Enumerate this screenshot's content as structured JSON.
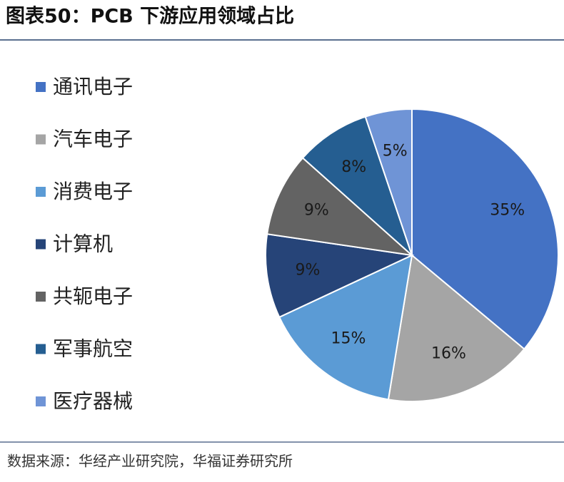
{
  "chart_data": {
    "type": "pie",
    "title": "图表50：PCB 下游应用领域占比",
    "source": "数据来源：华经产业研究院，华福证券研究所",
    "categories": [
      "通讯电子",
      "汽车电子",
      "消费电子",
      "计算机",
      "共轭电子",
      "军事航空",
      "医疗器械"
    ],
    "values": [
      35,
      16,
      15,
      9,
      9,
      8,
      5
    ],
    "value_labels": [
      "35%",
      "16%",
      "15%",
      "9%",
      "9%",
      "8%",
      "5%"
    ],
    "colors": [
      "#4472c4",
      "#a5a5a5",
      "#5b9bd5",
      "#264478",
      "#636363",
      "#255e91",
      "#6f94d6"
    ],
    "legend": "left"
  }
}
